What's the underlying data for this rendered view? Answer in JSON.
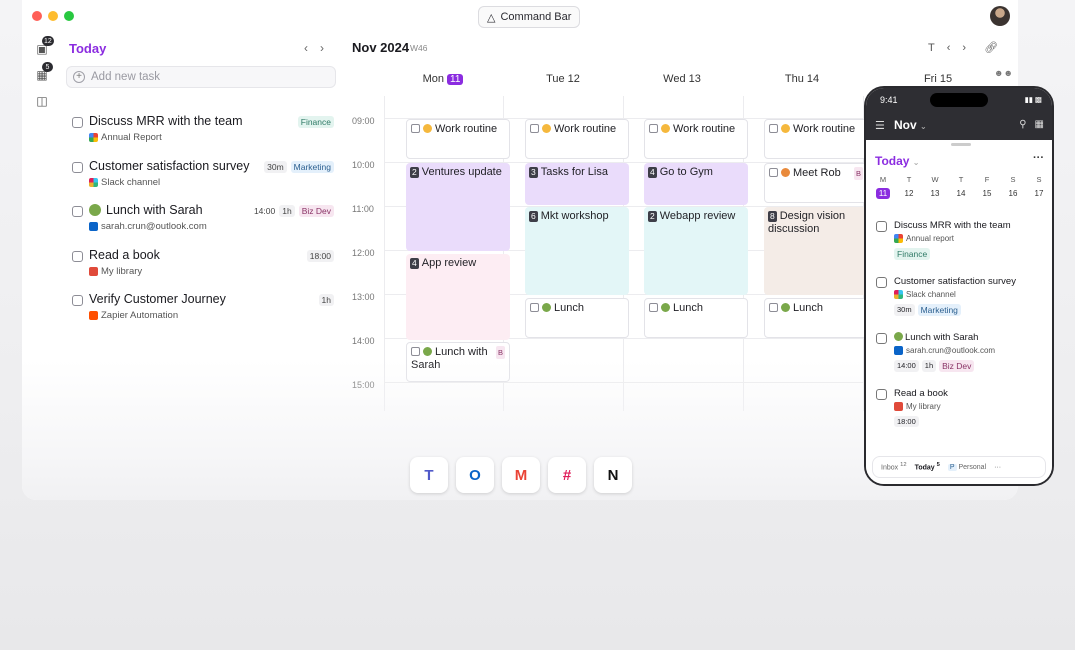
{
  "command_bar": {
    "label": "Command Bar"
  },
  "rail": {
    "inbox_count": "12",
    "today_count": "5"
  },
  "tasks_panel": {
    "title": "Today",
    "add_placeholder": "Add new task",
    "tasks": [
      {
        "title": "Discuss MRR with the team",
        "source": "Annual Report",
        "time": "",
        "duration": "",
        "tag": "Finance"
      },
      {
        "title": "Customer satisfaction survey",
        "source": "Slack channel",
        "time": "",
        "duration": "30m",
        "tag": "Marketing"
      },
      {
        "title": "Lunch with Sarah",
        "source": "sarah.crun@outlook.com",
        "time": "14:00",
        "duration": "1h",
        "tag": "Biz Dev"
      },
      {
        "title": "Read a book",
        "source": "My library",
        "time": "18:00",
        "duration": "",
        "tag": ""
      },
      {
        "title": "Verify Customer Journey",
        "source": "Zapier Automation",
        "time": "",
        "duration": "1h",
        "tag": ""
      }
    ]
  },
  "calendar": {
    "title": "Nov 2024",
    "week": "W46",
    "today_key": "T",
    "days": [
      {
        "label": "Mon",
        "num": "11"
      },
      {
        "label": "Tue 12"
      },
      {
        "label": "Wed 13"
      },
      {
        "label": "Thu 14"
      },
      {
        "label": "Fri 15"
      }
    ],
    "hours": [
      "09:00",
      "10:00",
      "11:00",
      "12:00",
      "13:00",
      "14:00",
      "15:00"
    ],
    "events": {
      "mon_work": "Work routine",
      "mon_ventures": {
        "count": "2",
        "title": "Ventures update"
      },
      "mon_app": {
        "count": "4",
        "title": "App review"
      },
      "mon_lunch": {
        "title": "Lunch with Sarah",
        "badge": "B"
      },
      "tue_work": "Work routine",
      "tue_tasks": {
        "count": "3",
        "title": "Tasks for Lisa"
      },
      "tue_mkt": {
        "count": "6",
        "title": "Mkt workshop"
      },
      "tue_lunch": "Lunch",
      "wed_work": "Work routine",
      "wed_gym": {
        "count": "4",
        "title": "Go to Gym"
      },
      "wed_webapp": {
        "count": "2",
        "title": "Webapp review"
      },
      "wed_lunch": "Lunch",
      "thu_work": "Work routine",
      "thu_rob": {
        "title": "Meet Rob",
        "badge": "B"
      },
      "thu_design": {
        "count": "8",
        "title": "Design vision discussion"
      },
      "thu_lunch": "Lunch"
    }
  },
  "apps": [
    "Teams",
    "Outlook",
    "Gmail",
    "Slack",
    "Notion"
  ],
  "phone": {
    "time": "9:41",
    "month": "Nov",
    "today_title": "Today",
    "dow": [
      "M",
      "T",
      "W",
      "T",
      "F",
      "S",
      "S"
    ],
    "dates": [
      "11",
      "12",
      "13",
      "14",
      "15",
      "16",
      "17"
    ],
    "tasks": [
      {
        "title": "Discuss MRR with the team",
        "source": "Annual report",
        "tags": [
          "Finance"
        ]
      },
      {
        "title": "Customer satisfaction survey",
        "source": "Slack channel",
        "tags": [
          "30m",
          "Marketing"
        ]
      },
      {
        "title": "Lunch with Sarah",
        "source": "sarah.crun@outlook.com",
        "tags": [
          "14:00",
          "1h",
          "Biz Dev"
        ]
      },
      {
        "title": "Read a book",
        "source": "My library",
        "tags": [
          "18:00"
        ]
      }
    ],
    "tabs": {
      "inbox": "Inbox",
      "inbox_count": "12",
      "today": "Today",
      "today_count": "5",
      "personal_key": "P",
      "personal": "Personal",
      "more": "···"
    }
  }
}
